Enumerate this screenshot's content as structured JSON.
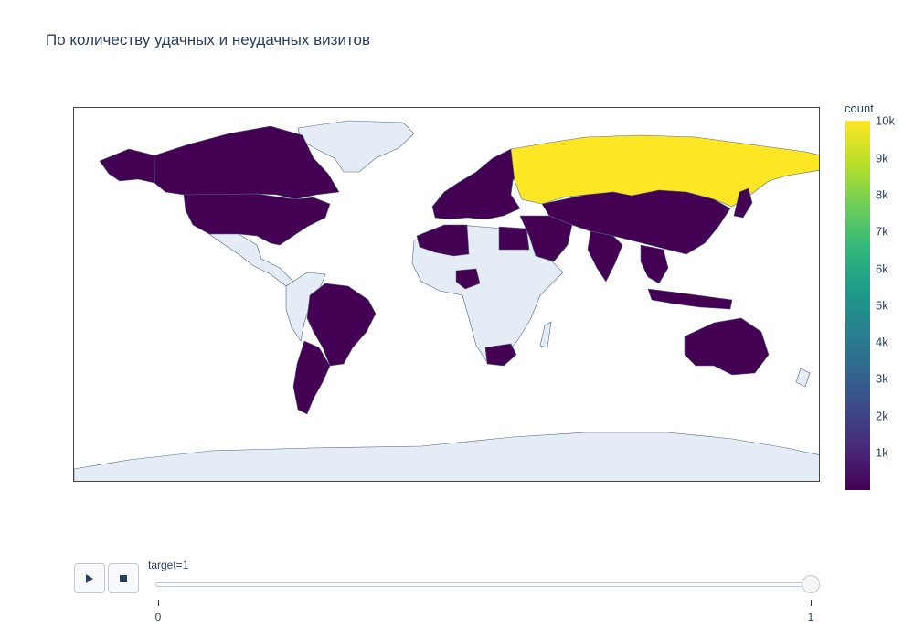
{
  "title": "По количеству удачных и неудачных визитов",
  "colorbar": {
    "title": "count",
    "ticks": [
      "10k",
      "9k",
      "8k",
      "7k",
      "6k",
      "5k",
      "4k",
      "3k",
      "2k",
      "1k"
    ],
    "max_value": 10000,
    "colorscale": "viridis"
  },
  "map": {
    "projection": "equirectangular",
    "land_color": "#e5ecf6",
    "coastline_color": "#506784",
    "countries_with_data": [
      {
        "name": "Russia",
        "level": "max"
      },
      {
        "name": "United States",
        "level": "low"
      },
      {
        "name": "Canada",
        "level": "low"
      },
      {
        "name": "Brazil",
        "level": "low"
      },
      {
        "name": "Argentina",
        "level": "low"
      },
      {
        "name": "Australia",
        "level": "low"
      },
      {
        "name": "China",
        "level": "low"
      },
      {
        "name": "India",
        "level": "low"
      },
      {
        "name": "South Africa",
        "level": "low"
      },
      {
        "name": "Nigeria",
        "level": "low"
      },
      {
        "name": "Algeria",
        "level": "low"
      },
      {
        "name": "Morocco",
        "level": "low"
      },
      {
        "name": "Egypt",
        "level": "low"
      },
      {
        "name": "Saudi Arabia",
        "level": "low"
      },
      {
        "name": "Iran",
        "level": "low"
      },
      {
        "name": "Kazakhstan",
        "level": "low"
      },
      {
        "name": "Indonesia",
        "level": "low"
      },
      {
        "name": "Scandinavia",
        "level": "low"
      },
      {
        "name": "Europe",
        "level": "low"
      },
      {
        "name": "Japan",
        "level": "low"
      },
      {
        "name": "Mongolia",
        "level": "low"
      }
    ]
  },
  "controls": {
    "play_icon": "play-icon",
    "stop_icon": "stop-icon",
    "slider_label": "target=1",
    "slider_ticks": [
      "0",
      "1"
    ],
    "slider_value": 1
  }
}
